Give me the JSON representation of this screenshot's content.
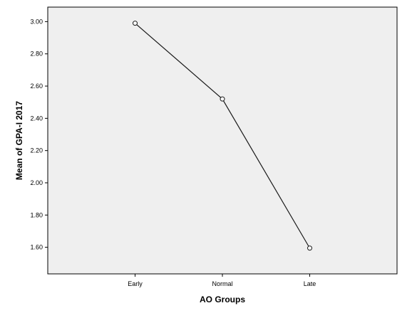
{
  "chart_data": {
    "type": "line",
    "title": "",
    "xlabel": "AO Groups",
    "ylabel": "Mean of GPA-I 2017",
    "categories": [
      "Early",
      "Normal",
      "Late"
    ],
    "series": [
      {
        "values": [
          2.99,
          2.52,
          1.595
        ]
      }
    ],
    "yticks": [
      "1.60",
      "1.80",
      "2.00",
      "2.20",
      "2.40",
      "2.60",
      "2.80",
      "3.00"
    ],
    "ylim": [
      1.435,
      3.09
    ],
    "grid": false,
    "legend": "none",
    "colors": {
      "plot_background": "#efefef",
      "line": "#1a1a1a",
      "marker_fill": "#ffffff",
      "axis": "#000000"
    }
  }
}
